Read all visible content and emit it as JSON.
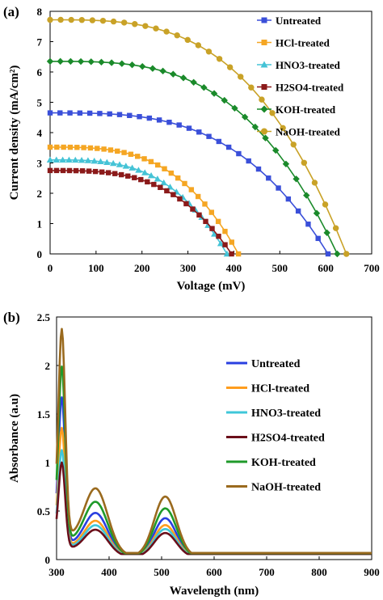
{
  "chart_data": [
    {
      "panel": "(a)",
      "type": "line",
      "xlabel": "Voltage (mV)",
      "ylabel": "Current density (mA/cm²)",
      "xlim": [
        0,
        700
      ],
      "ylim": [
        0,
        8
      ],
      "xticks": [
        0,
        100,
        200,
        300,
        400,
        500,
        600,
        700
      ],
      "yticks": [
        0,
        1,
        2,
        3,
        4,
        5,
        6,
        7,
        8
      ],
      "grid": false,
      "legend": "right",
      "series": [
        {
          "name": "Untreated",
          "color": "#3a4fd9",
          "marker": "square",
          "jsc": 4.65,
          "voc": 605
        },
        {
          "name": "HCl-treated",
          "color": "#f5a623",
          "marker": "square",
          "jsc": 3.52,
          "voc": 410
        },
        {
          "name": "HNO3-treated",
          "color": "#45c3d6",
          "marker": "triangle",
          "jsc": 3.1,
          "voc": 385
        },
        {
          "name": "H2SO4-treated",
          "color": "#8b1a1a",
          "marker": "square",
          "jsc": 2.75,
          "voc": 395
        },
        {
          "name": "KOH-treated",
          "color": "#1a8a2a",
          "marker": "diamond",
          "jsc": 6.35,
          "voc": 625
        },
        {
          "name": "NaOH-treated",
          "color": "#c9a227",
          "marker": "circle",
          "jsc": 7.72,
          "voc": 645
        }
      ]
    },
    {
      "panel": "(b)",
      "type": "line",
      "xlabel": "Wavelength (nm)",
      "ylabel": "Absorbance (a.u)",
      "xlim": [
        300,
        900
      ],
      "ylim": [
        0,
        2.5
      ],
      "xticks": [
        300,
        400,
        500,
        600,
        700,
        800,
        900
      ],
      "yticks": [
        0,
        0.5,
        1,
        1.5,
        2,
        2.5
      ],
      "grid": false,
      "legend": "right",
      "series": [
        {
          "name": "Untreated",
          "color": "#2a3fe0",
          "peak1": 1.46,
          "peak2": 0.4
        },
        {
          "name": "HCl-treated",
          "color": "#ff9d1e",
          "peak1": 1.18,
          "peak2": 0.33
        },
        {
          "name": "HNO3-treated",
          "color": "#3fc7d9",
          "peak1": 0.97,
          "peak2": 0.29
        },
        {
          "name": "H2SO4-treated",
          "color": "#6b0f1a",
          "peak1": 0.86,
          "peak2": 0.25
        },
        {
          "name": "KOH-treated",
          "color": "#1f9a2a",
          "peak1": 1.73,
          "peak2": 0.5
        },
        {
          "name": "NaOH-treated",
          "color": "#9a6a1e",
          "peak1": 2.06,
          "peak2": 0.62
        }
      ]
    }
  ]
}
